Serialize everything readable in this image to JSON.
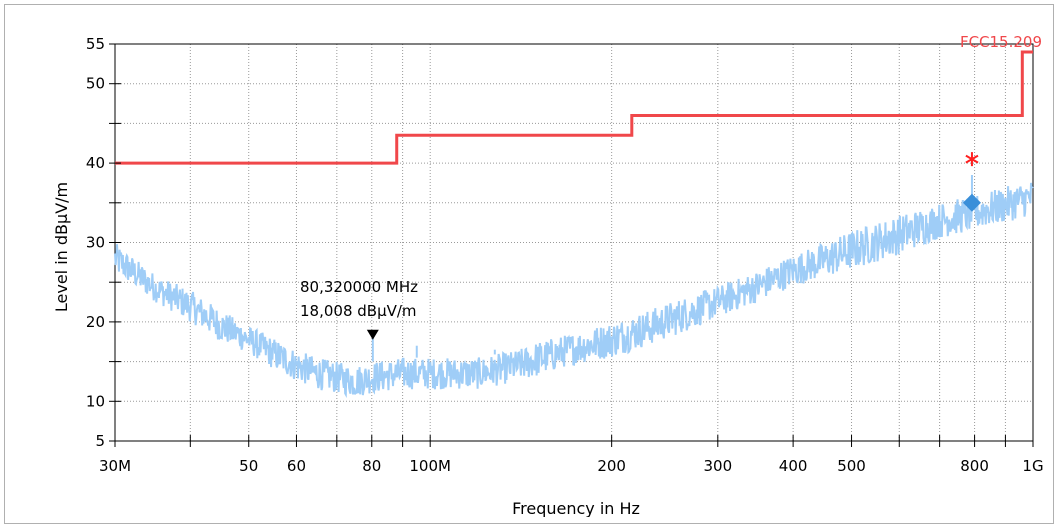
{
  "chart_data": {
    "type": "line",
    "title": "",
    "xlabel": "Frequency in Hz",
    "ylabel": "Level in dBµV/m",
    "x_scale": "log",
    "xlim": [
      30,
      1000
    ],
    "ylim": [
      5,
      55
    ],
    "x_ticks": [
      {
        "value": 30,
        "label": "30M"
      },
      {
        "value": 50,
        "label": "50"
      },
      {
        "value": 60,
        "label": "60"
      },
      {
        "value": 80,
        "label": "80"
      },
      {
        "value": 100,
        "label": "100M"
      },
      {
        "value": 200,
        "label": "200"
      },
      {
        "value": 300,
        "label": "300"
      },
      {
        "value": 400,
        "label": "400"
      },
      {
        "value": 500,
        "label": "500"
      },
      {
        "value": 800,
        "label": "800"
      },
      {
        "value": 1000,
        "label": "1G"
      }
    ],
    "x_minor_ticks": [
      40,
      70,
      90,
      600,
      700,
      900
    ],
    "y_ticks": [
      {
        "value": 5,
        "label": "5"
      },
      {
        "value": 10,
        "label": "10"
      },
      {
        "value": 20,
        "label": "20"
      },
      {
        "value": 30,
        "label": "30"
      },
      {
        "value": 40,
        "label": "40"
      },
      {
        "value": 50,
        "label": "50"
      },
      {
        "value": 55,
        "label": "55"
      }
    ],
    "y_minor_ticks": [
      15,
      25,
      35,
      45
    ],
    "grid": true,
    "limit_line": {
      "name": "FCC15.209",
      "color": "#f0474a",
      "x": [
        30,
        88,
        88,
        216,
        216,
        960,
        960,
        1000
      ],
      "y": [
        40,
        40,
        43.5,
        43.5,
        46,
        46,
        54,
        54
      ]
    },
    "measurement": {
      "color": "#9fcdf7",
      "x": [
        30,
        35,
        40,
        45,
        50,
        55,
        60,
        65,
        70,
        75,
        80,
        90,
        100,
        110,
        120,
        130,
        140,
        150,
        170,
        200,
        230,
        260,
        300,
        350,
        400,
        450,
        500,
        600,
        700,
        800,
        900,
        1000
      ],
      "y_low": [
        26,
        22.5,
        20,
        17.5,
        16,
        14,
        12.5,
        11.5,
        11,
        10.5,
        11,
        11.5,
        11.5,
        11.5,
        11.5,
        12,
        12.5,
        13,
        14.5,
        15.5,
        17,
        18.5,
        20.5,
        22.5,
        24.5,
        25.5,
        26.5,
        28.5,
        30.5,
        31.5,
        32.5,
        33.5
      ],
      "y_high": [
        30,
        26,
        24,
        21.5,
        19.5,
        18,
        16.5,
        15.5,
        15,
        14.5,
        15,
        15.5,
        15.5,
        15.5,
        15.5,
        16,
        16.5,
        17.5,
        18.5,
        20,
        21.5,
        23,
        24.5,
        26.5,
        28.5,
        30,
        31.5,
        33.5,
        35,
        36,
        37,
        38
      ]
    },
    "markers": [
      {
        "type": "triangle",
        "x": 80.32,
        "y": 18.008,
        "color": "#000000"
      },
      {
        "type": "diamond",
        "x": 792,
        "y": 35,
        "color": "#3a8fd9"
      },
      {
        "type": "star",
        "x": 792,
        "y": 40.5,
        "color": "#ff2020"
      }
    ],
    "annotation": {
      "line1": "80,320000 MHz",
      "line2": "18,008 dBµV/m"
    }
  }
}
